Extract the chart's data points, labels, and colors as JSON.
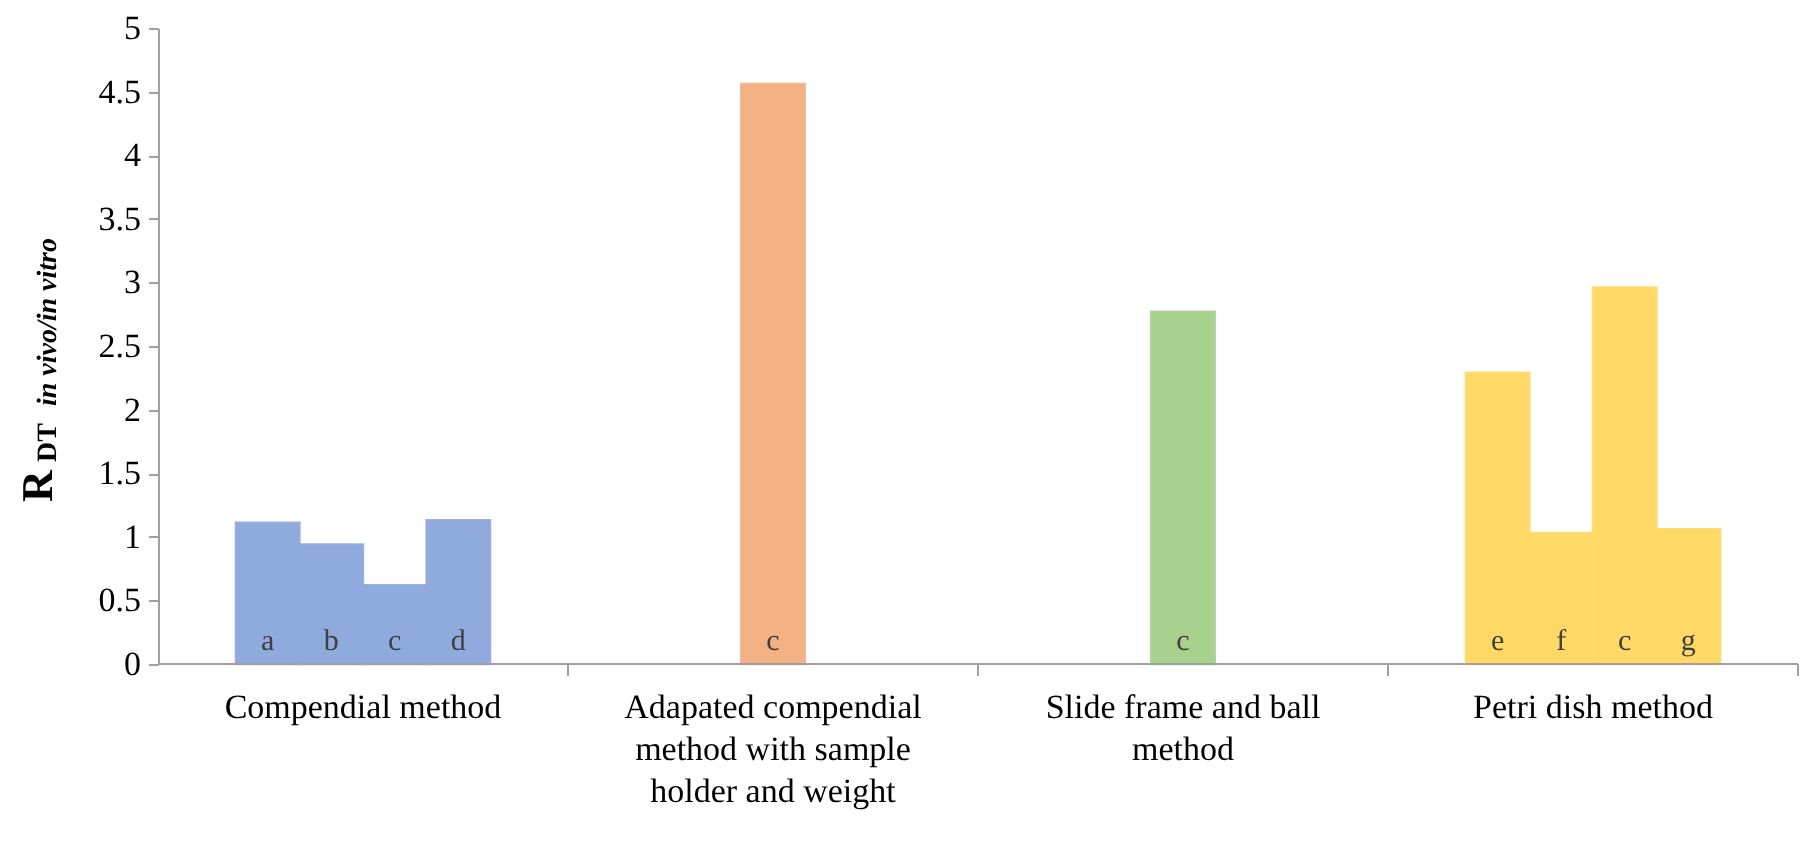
{
  "chart_data": {
    "type": "bar",
    "ylabel": "R$_{DT in vivo/in vitro}$",
    "categories": [
      "Compendial method",
      "Adapated compendial method with sample holder and weight",
      "Slide frame and ball method",
      "Petri dish method"
    ],
    "series": [
      {
        "colors": [
          "#8faadc",
          "#f4b183",
          "#a9d18e",
          "#ffd966"
        ],
        "values": [
          1.11,
          4.56,
          2.77,
          2.29
        ],
        "value_labels": [
          "a",
          "c",
          "c",
          "e"
        ]
      },
      {
        "colors": [
          "#8faadc",
          "#f4b183",
          "#a9d18e",
          "#ffd966"
        ],
        "values": [
          0.94,
          null,
          null,
          1.03
        ],
        "value_labels": [
          "b",
          null,
          null,
          "f"
        ]
      },
      {
        "colors": [
          "#8faadc",
          "#f4b183",
          "#a9d18e",
          "#ffd966"
        ],
        "values": [
          0.62,
          null,
          null,
          2.96
        ],
        "value_labels": [
          "c",
          null,
          null,
          "c"
        ]
      },
      {
        "colors": [
          "#8faadc",
          "#f4b183",
          "#a9d18e",
          "#ffd966"
        ],
        "values": [
          1.13,
          null,
          null,
          1.06
        ],
        "value_labels": [
          "d",
          null,
          null,
          "g"
        ]
      }
    ],
    "ylim": [
      0,
      5
    ],
    "yticks": [
      0,
      0.5,
      1,
      1.5,
      2,
      2.5,
      3,
      3.5,
      4,
      4.5,
      5
    ],
    "grid": false
  }
}
